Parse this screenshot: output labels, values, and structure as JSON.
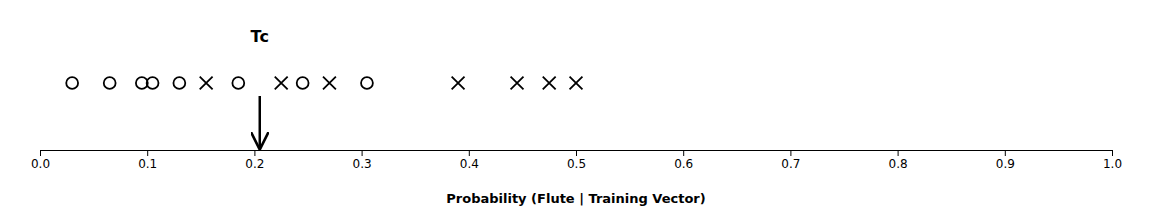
{
  "chart_data": {
    "type": "strip",
    "x_label": "Probability (Flute | Training Vector)",
    "xlim": [
      0.0,
      1.0
    ],
    "xticks": [
      {
        "value": 0.0,
        "label": "0.0"
      },
      0.1,
      0.2,
      0.3,
      0.4,
      0.5,
      0.6,
      0.7,
      0.8,
      0.9,
      {
        "value": 1.0,
        "label": "1.0"
      }
    ],
    "series": [
      {
        "marker": "x",
        "color": "#000000",
        "values": [
          0.155,
          0.225,
          0.27,
          0.39,
          0.445,
          0.475,
          0.5
        ]
      },
      {
        "marker": "o",
        "color": "#000000",
        "values": [
          0.03,
          0.065,
          0.095,
          0.105,
          0.13,
          0.185,
          0.245,
          0.305
        ]
      }
    ],
    "annotations": [
      {
        "text": "Tc",
        "x": 0.205
      }
    ],
    "grid": false,
    "tick_labels": "x"
  }
}
